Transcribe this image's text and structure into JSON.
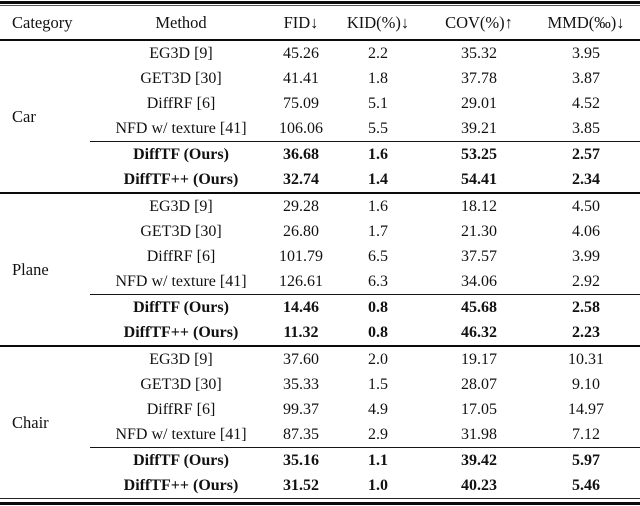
{
  "table": {
    "columns": [
      {
        "label": "Category"
      },
      {
        "label": "Method"
      },
      {
        "label": "FID↓"
      },
      {
        "label": "KID(%)↓"
      },
      {
        "label": "COV(%)↑"
      },
      {
        "label": "MMD(‰)↓"
      }
    ],
    "sections": [
      {
        "category": "Car",
        "rows": [
          {
            "method": "EG3D [9]",
            "fid": "45.26",
            "kid": "2.2",
            "cov": "35.32",
            "mmd": "3.95",
            "bold": false
          },
          {
            "method": "GET3D [30]",
            "fid": "41.41",
            "kid": "1.8",
            "cov": "37.78",
            "mmd": "3.87",
            "bold": false
          },
          {
            "method": "DiffRF [6]",
            "fid": "75.09",
            "kid": "5.1",
            "cov": "29.01",
            "mmd": "4.52",
            "bold": false
          },
          {
            "method": "NFD w/ texture [41]",
            "fid": "106.06",
            "kid": "5.5",
            "cov": "39.21",
            "mmd": "3.85",
            "bold": false
          },
          {
            "method": "DiffTF (Ours)",
            "fid": "36.68",
            "kid": "1.6",
            "cov": "53.25",
            "mmd": "2.57",
            "bold": true
          },
          {
            "method": "DiffTF++ (Ours)",
            "fid": "32.74",
            "kid": "1.4",
            "cov": "54.41",
            "mmd": "2.34",
            "bold": true
          }
        ]
      },
      {
        "category": "Plane",
        "rows": [
          {
            "method": "EG3D [9]",
            "fid": "29.28",
            "kid": "1.6",
            "cov": "18.12",
            "mmd": "4.50",
            "bold": false
          },
          {
            "method": "GET3D [30]",
            "fid": "26.80",
            "kid": "1.7",
            "cov": "21.30",
            "mmd": "4.06",
            "bold": false
          },
          {
            "method": "DiffRF [6]",
            "fid": "101.79",
            "kid": "6.5",
            "cov": "37.57",
            "mmd": "3.99",
            "bold": false
          },
          {
            "method": "NFD w/ texture [41]",
            "fid": "126.61",
            "kid": "6.3",
            "cov": "34.06",
            "mmd": "2.92",
            "bold": false
          },
          {
            "method": "DiffTF (Ours)",
            "fid": "14.46",
            "kid": "0.8",
            "cov": "45.68",
            "mmd": "2.58",
            "bold": true
          },
          {
            "method": "DiffTF++ (Ours)",
            "fid": "11.32",
            "kid": "0.8",
            "cov": "46.32",
            "mmd": "2.23",
            "bold": true
          }
        ]
      },
      {
        "category": "Chair",
        "rows": [
          {
            "method": "EG3D [9]",
            "fid": "37.60",
            "kid": "2.0",
            "cov": "19.17",
            "mmd": "10.31",
            "bold": false
          },
          {
            "method": "GET3D [30]",
            "fid": "35.33",
            "kid": "1.5",
            "cov": "28.07",
            "mmd": "9.10",
            "bold": false
          },
          {
            "method": "DiffRF [6]",
            "fid": "99.37",
            "kid": "4.9",
            "cov": "17.05",
            "mmd": "14.97",
            "bold": false
          },
          {
            "method": "NFD w/ texture [41]",
            "fid": "87.35",
            "kid": "2.9",
            "cov": "31.98",
            "mmd": "7.12",
            "bold": false
          },
          {
            "method": "DiffTF (Ours)",
            "fid": "35.16",
            "kid": "1.1",
            "cov": "39.42",
            "mmd": "5.97",
            "bold": true
          },
          {
            "method": "DiffTF++ (Ours)",
            "fid": "31.52",
            "kid": "1.0",
            "cov": "40.23",
            "mmd": "5.46",
            "bold": true
          }
        ]
      }
    ]
  }
}
